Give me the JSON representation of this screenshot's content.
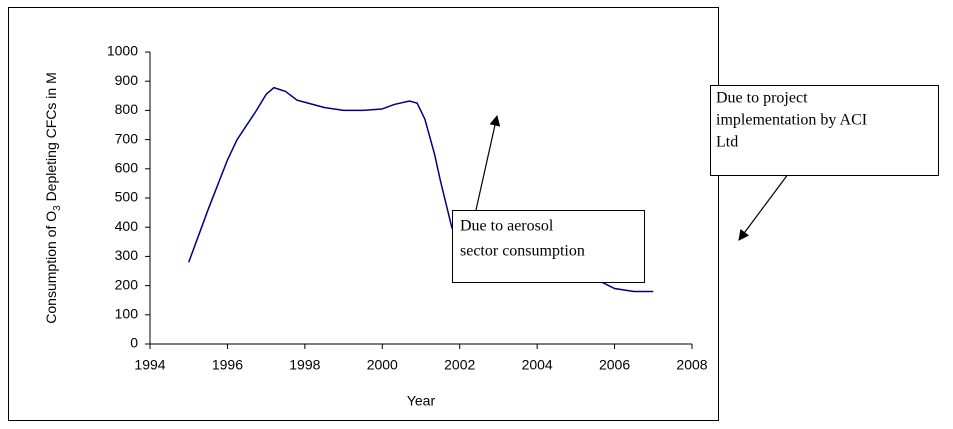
{
  "chart_data": {
    "type": "line",
    "x_label": "Year",
    "y_label": {
      "before": "Consumption of O",
      "sub": "3",
      "after": " Depleting CFCs in M"
    },
    "x": [
      1995,
      1995.5,
      1996,
      1996.25,
      1996.75,
      1997,
      1997.2,
      1997.5,
      1997.8,
      1998,
      1998.5,
      1999,
      1999.5,
      2000,
      2000.3,
      2000.7,
      2000.9,
      2001.1,
      2001.35,
      2001.5,
      2001.8,
      2002.5,
      2003,
      2004,
      2005,
      2005.7,
      2006,
      2006.5,
      2007
    ],
    "values": [
      280,
      460,
      630,
      700,
      800,
      855,
      878,
      865,
      835,
      828,
      810,
      800,
      800,
      805,
      820,
      832,
      825,
      770,
      650,
      560,
      397,
      330,
      300,
      260,
      230,
      210,
      190,
      180,
      180
    ],
    "color": "#000080",
    "xlim": [
      1994,
      2008
    ],
    "xticks": [
      1994,
      1996,
      1998,
      2000,
      2002,
      2004,
      2006,
      2008
    ],
    "ylim": [
      0,
      1000
    ],
    "yticks": [
      0,
      100,
      200,
      300,
      400,
      500,
      600,
      700,
      800,
      900,
      1000
    ],
    "annotations": [
      {
        "lines": [
          "Due to aerosol",
          "sector consumption"
        ]
      },
      {
        "lines": [
          "Due to project",
          "implementation by ACI",
          "Ltd"
        ]
      }
    ]
  }
}
